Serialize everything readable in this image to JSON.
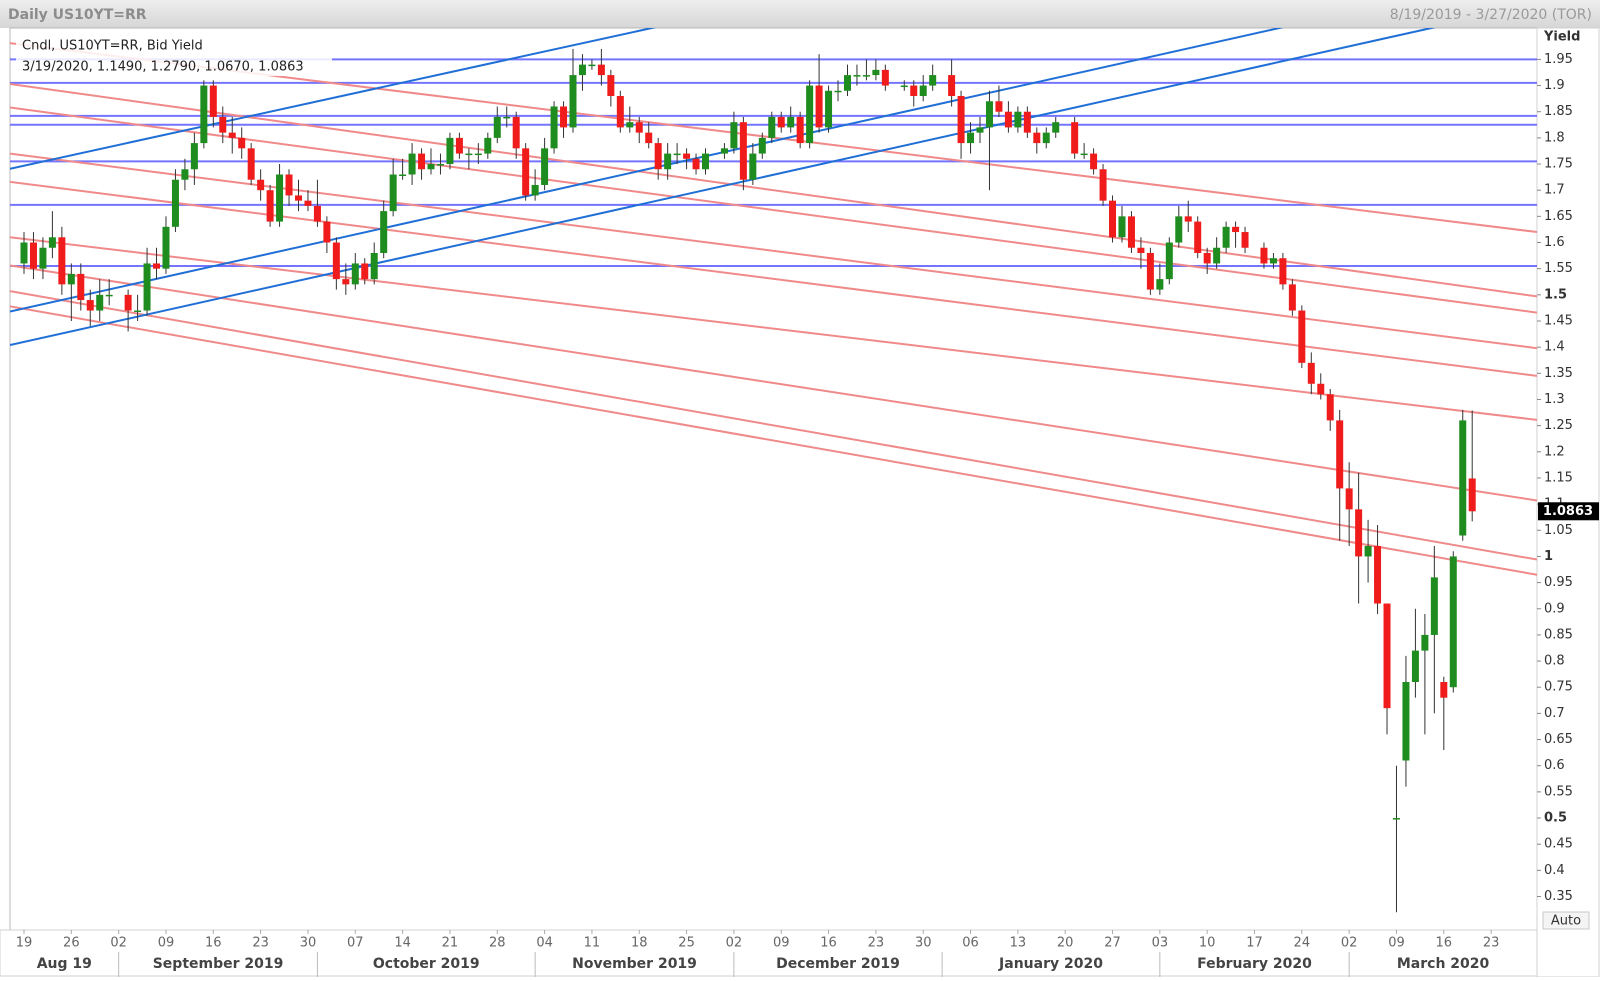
{
  "chart_data": {
    "type": "candlestick",
    "title": "Daily US10YT=RR",
    "range_label": "8/19/2019 - 3/27/2020 (TOR)",
    "legend_title": "Cndl, US10YT=RR, Bid Yield",
    "ohlc_label": "3/19/2020, 1.1490, 1.2790, 1.0670, 1.0863",
    "y_label": "Yield",
    "scale_mode": "Auto",
    "up_color": "#1e8c1e",
    "down_color": "#f01c1c",
    "grid": false,
    "xlim": [
      "8/19/2019",
      "3/27/2020"
    ],
    "ylim": [
      0.286,
      2.01
    ],
    "yticks": [
      0.35,
      0.4,
      0.45,
      0.5,
      0.55,
      0.6,
      0.65,
      0.7,
      0.75,
      0.8,
      0.85,
      0.9,
      0.95,
      1,
      1.05,
      1.1,
      1.15,
      1.2,
      1.25,
      1.3,
      1.35,
      1.4,
      1.45,
      1.5,
      1.55,
      1.6,
      1.65,
      1.7,
      1.75,
      1.8,
      1.85,
      1.9,
      1.95
    ],
    "xticks": [
      {
        "value": "8/19/2019",
        "label": "19"
      },
      {
        "value": "8/26/2019",
        "label": "26"
      },
      {
        "value": "9/2/2019",
        "label": "02"
      },
      {
        "value": "9/9/2019",
        "label": "09"
      },
      {
        "value": "9/16/2019",
        "label": "16"
      },
      {
        "value": "9/23/2019",
        "label": "23"
      },
      {
        "value": "9/30/2019",
        "label": "30"
      },
      {
        "value": "10/7/2019",
        "label": "07"
      },
      {
        "value": "10/14/2019",
        "label": "14"
      },
      {
        "value": "10/21/2019",
        "label": "21"
      },
      {
        "value": "10/28/2019",
        "label": "28"
      },
      {
        "value": "11/4/2019",
        "label": "04"
      },
      {
        "value": "11/11/2019",
        "label": "11"
      },
      {
        "value": "11/18/2019",
        "label": "18"
      },
      {
        "value": "11/25/2019",
        "label": "25"
      },
      {
        "value": "12/2/2019",
        "label": "02"
      },
      {
        "value": "12/9/2019",
        "label": "09"
      },
      {
        "value": "12/16/2019",
        "label": "16"
      },
      {
        "value": "12/23/2019",
        "label": "23"
      },
      {
        "value": "12/30/2019",
        "label": "30"
      },
      {
        "value": "1/6/2020",
        "label": "06"
      },
      {
        "value": "1/13/2020",
        "label": "13"
      },
      {
        "value": "1/20/2020",
        "label": "20"
      },
      {
        "value": "1/27/2020",
        "label": "27"
      },
      {
        "value": "2/3/2020",
        "label": "03"
      },
      {
        "value": "2/10/2020",
        "label": "10"
      },
      {
        "value": "2/17/2020",
        "label": "17"
      },
      {
        "value": "2/24/2020",
        "label": "24"
      },
      {
        "value": "3/2/2020",
        "label": "02"
      },
      {
        "value": "3/9/2020",
        "label": "09"
      },
      {
        "value": "3/16/2020",
        "label": "16"
      },
      {
        "value": "3/23/2020",
        "label": "23"
      }
    ],
    "months": [
      {
        "value": "8/1/2019",
        "label": "Aug 19"
      },
      {
        "value": "9/1/2019",
        "label": "September 2019"
      },
      {
        "value": "10/1/2019",
        "label": "October 2019"
      },
      {
        "value": "11/1/2019",
        "label": "November 2019"
      },
      {
        "value": "12/1/2019",
        "label": "December 2019"
      },
      {
        "value": "1/1/2020",
        "label": "January 2020"
      },
      {
        "value": "2/1/2020",
        "label": "February 2020"
      },
      {
        "value": "3/1/2020",
        "label": "March 2020"
      }
    ],
    "hline_color": "#7474ff",
    "hlines": [
      1.95,
      1.905,
      1.842,
      1.825,
      1.755,
      1.672,
      1.555
    ],
    "up_trend_color": "#1f6fd6",
    "up_trends": [
      {
        "left": 1.741,
        "right": 2.381
      },
      {
        "left": 1.468,
        "right": 2.12
      },
      {
        "left": 1.404,
        "right": 2.055
      }
    ],
    "down_trend_color": "#f08a8a",
    "down_trends": [
      {
        "left": 1.981,
        "right": 1.62
      },
      {
        "left": 1.903,
        "right": 1.497
      },
      {
        "left": 1.858,
        "right": 1.466
      },
      {
        "left": 1.77,
        "right": 1.398
      },
      {
        "left": 1.716,
        "right": 1.345
      },
      {
        "left": 1.61,
        "right": 1.261
      },
      {
        "left": 1.556,
        "right": 1.107
      },
      {
        "left": 1.507,
        "right": 0.994
      },
      {
        "left": 1.478,
        "right": 0.965
      }
    ],
    "candles": [
      [
        "8/19/2019",
        1.56,
        1.62,
        1.54,
        1.6
      ],
      [
        "8/20/2019",
        1.6,
        1.62,
        1.53,
        1.55
      ],
      [
        "8/21/2019",
        1.55,
        1.61,
        1.53,
        1.59
      ],
      [
        "8/22/2019",
        1.59,
        1.66,
        1.57,
        1.61
      ],
      [
        "8/23/2019",
        1.61,
        1.63,
        1.5,
        1.52
      ],
      [
        "8/26/2019",
        1.52,
        1.56,
        1.45,
        1.54
      ],
      [
        "8/27/2019",
        1.54,
        1.56,
        1.47,
        1.49
      ],
      [
        "8/28/2019",
        1.49,
        1.51,
        1.44,
        1.47
      ],
      [
        "8/29/2019",
        1.47,
        1.53,
        1.45,
        1.5
      ],
      [
        "8/30/2019",
        1.5,
        1.53,
        1.48,
        1.5
      ],
      [
        "9/3/2019",
        1.5,
        1.51,
        1.43,
        1.47
      ],
      [
        "9/4/2019",
        1.47,
        1.5,
        1.45,
        1.47
      ],
      [
        "9/5/2019",
        1.47,
        1.59,
        1.46,
        1.56
      ],
      [
        "9/6/2019",
        1.56,
        1.59,
        1.53,
        1.55
      ],
      [
        "9/9/2019",
        1.55,
        1.65,
        1.54,
        1.63
      ],
      [
        "9/10/2019",
        1.63,
        1.74,
        1.62,
        1.72
      ],
      [
        "9/11/2019",
        1.72,
        1.76,
        1.7,
        1.74
      ],
      [
        "9/12/2019",
        1.74,
        1.81,
        1.71,
        1.79
      ],
      [
        "9/13/2019",
        1.79,
        1.91,
        1.78,
        1.9
      ],
      [
        "9/16/2019",
        1.9,
        1.91,
        1.82,
        1.84
      ],
      [
        "9/17/2019",
        1.84,
        1.86,
        1.79,
        1.81
      ],
      [
        "9/18/2019",
        1.81,
        1.84,
        1.77,
        1.8
      ],
      [
        "9/19/2019",
        1.8,
        1.82,
        1.76,
        1.78
      ],
      [
        "9/20/2019",
        1.78,
        1.79,
        1.71,
        1.72
      ],
      [
        "9/23/2019",
        1.72,
        1.74,
        1.68,
        1.7
      ],
      [
        "9/24/2019",
        1.7,
        1.71,
        1.63,
        1.64
      ],
      [
        "9/25/2019",
        1.64,
        1.75,
        1.63,
        1.73
      ],
      [
        "9/26/2019",
        1.73,
        1.74,
        1.67,
        1.69
      ],
      [
        "9/27/2019",
        1.69,
        1.72,
        1.66,
        1.68
      ],
      [
        "9/30/2019",
        1.68,
        1.7,
        1.66,
        1.67
      ],
      [
        "10/1/2019",
        1.67,
        1.72,
        1.63,
        1.64
      ],
      [
        "10/2/2019",
        1.64,
        1.65,
        1.58,
        1.6
      ],
      [
        "10/3/2019",
        1.6,
        1.61,
        1.51,
        1.53
      ],
      [
        "10/4/2019",
        1.53,
        1.56,
        1.5,
        1.52
      ],
      [
        "10/7/2019",
        1.52,
        1.58,
        1.51,
        1.56
      ],
      [
        "10/8/2019",
        1.56,
        1.57,
        1.52,
        1.53
      ],
      [
        "10/9/2019",
        1.53,
        1.6,
        1.52,
        1.58
      ],
      [
        "10/10/2019",
        1.58,
        1.68,
        1.57,
        1.66
      ],
      [
        "10/11/2019",
        1.66,
        1.76,
        1.65,
        1.73
      ],
      [
        "10/14/2019",
        1.73,
        1.76,
        1.72,
        1.73
      ],
      [
        "10/15/2019",
        1.73,
        1.79,
        1.71,
        1.77
      ],
      [
        "10/16/2019",
        1.77,
        1.78,
        1.72,
        1.74
      ],
      [
        "10/17/2019",
        1.74,
        1.78,
        1.73,
        1.75
      ],
      [
        "10/18/2019",
        1.75,
        1.77,
        1.73,
        1.75
      ],
      [
        "10/21/2019",
        1.75,
        1.81,
        1.74,
        1.8
      ],
      [
        "10/22/2019",
        1.8,
        1.81,
        1.76,
        1.77
      ],
      [
        "10/23/2019",
        1.77,
        1.78,
        1.74,
        1.77
      ],
      [
        "10/24/2019",
        1.77,
        1.79,
        1.75,
        1.77
      ],
      [
        "10/25/2019",
        1.77,
        1.81,
        1.76,
        1.8
      ],
      [
        "10/28/2019",
        1.8,
        1.86,
        1.79,
        1.84
      ],
      [
        "10/29/2019",
        1.84,
        1.86,
        1.82,
        1.84
      ],
      [
        "10/30/2019",
        1.84,
        1.85,
        1.76,
        1.78
      ],
      [
        "10/31/2019",
        1.78,
        1.79,
        1.68,
        1.69
      ],
      [
        "11/1/2019",
        1.69,
        1.74,
        1.68,
        1.71
      ],
      [
        "11/4/2019",
        1.71,
        1.8,
        1.7,
        1.78
      ],
      [
        "11/5/2019",
        1.78,
        1.87,
        1.77,
        1.86
      ],
      [
        "11/6/2019",
        1.86,
        1.87,
        1.8,
        1.82
      ],
      [
        "11/7/2019",
        1.82,
        1.97,
        1.81,
        1.92
      ],
      [
        "11/8/2019",
        1.92,
        1.96,
        1.89,
        1.94
      ],
      [
        "11/11/2019",
        1.94,
        1.95,
        1.93,
        1.94
      ],
      [
        "11/12/2019",
        1.94,
        1.97,
        1.9,
        1.92
      ],
      [
        "11/13/2019",
        1.92,
        1.93,
        1.86,
        1.88
      ],
      [
        "11/14/2019",
        1.88,
        1.89,
        1.81,
        1.82
      ],
      [
        "11/15/2019",
        1.82,
        1.86,
        1.81,
        1.83
      ],
      [
        "11/18/2019",
        1.83,
        1.84,
        1.79,
        1.81
      ],
      [
        "11/19/2019",
        1.81,
        1.83,
        1.78,
        1.79
      ],
      [
        "11/20/2019",
        1.79,
        1.8,
        1.72,
        1.74
      ],
      [
        "11/21/2019",
        1.74,
        1.79,
        1.72,
        1.77
      ],
      [
        "11/22/2019",
        1.77,
        1.79,
        1.75,
        1.77
      ],
      [
        "11/25/2019",
        1.77,
        1.78,
        1.74,
        1.76
      ],
      [
        "11/26/2019",
        1.76,
        1.77,
        1.73,
        1.74
      ],
      [
        "11/27/2019",
        1.74,
        1.78,
        1.73,
        1.77
      ],
      [
        "11/29/2019",
        1.77,
        1.79,
        1.76,
        1.78
      ],
      [
        "12/2/2019",
        1.78,
        1.85,
        1.77,
        1.83
      ],
      [
        "12/3/2019",
        1.83,
        1.84,
        1.7,
        1.72
      ],
      [
        "12/4/2019",
        1.72,
        1.79,
        1.71,
        1.77
      ],
      [
        "12/5/2019",
        1.77,
        1.81,
        1.76,
        1.8
      ],
      [
        "12/6/2019",
        1.8,
        1.85,
        1.79,
        1.84
      ],
      [
        "12/9/2019",
        1.84,
        1.85,
        1.81,
        1.82
      ],
      [
        "12/10/2019",
        1.82,
        1.86,
        1.81,
        1.84
      ],
      [
        "12/11/2019",
        1.84,
        1.85,
        1.78,
        1.79
      ],
      [
        "12/12/2019",
        1.79,
        1.91,
        1.78,
        1.9
      ],
      [
        "12/13/2019",
        1.9,
        1.96,
        1.81,
        1.82
      ],
      [
        "12/16/2019",
        1.82,
        1.9,
        1.81,
        1.89
      ],
      [
        "12/17/2019",
        1.89,
        1.91,
        1.87,
        1.89
      ],
      [
        "12/18/2019",
        1.89,
        1.94,
        1.88,
        1.92
      ],
      [
        "12/19/2019",
        1.92,
        1.94,
        1.9,
        1.92
      ],
      [
        "12/20/2019",
        1.92,
        1.95,
        1.91,
        1.92
      ],
      [
        "12/23/2019",
        1.92,
        1.95,
        1.91,
        1.93
      ],
      [
        "12/24/2019",
        1.93,
        1.94,
        1.89,
        1.9
      ],
      [
        "12/26/2019",
        1.9,
        1.91,
        1.89,
        1.9
      ],
      [
        "12/27/2019",
        1.9,
        1.91,
        1.86,
        1.88
      ],
      [
        "12/30/2019",
        1.88,
        1.92,
        1.87,
        1.9
      ],
      [
        "12/31/2019",
        1.9,
        1.94,
        1.89,
        1.92
      ],
      [
        "1/2/2020",
        1.92,
        1.95,
        1.86,
        1.88
      ],
      [
        "1/3/2020",
        1.88,
        1.89,
        1.76,
        1.79
      ],
      [
        "1/6/2020",
        1.79,
        1.83,
        1.77,
        1.81
      ],
      [
        "1/7/2020",
        1.81,
        1.84,
        1.79,
        1.82
      ],
      [
        "1/8/2020",
        1.82,
        1.89,
        1.7,
        1.87
      ],
      [
        "1/9/2020",
        1.87,
        1.9,
        1.84,
        1.85
      ],
      [
        "1/10/2020",
        1.85,
        1.87,
        1.81,
        1.82
      ],
      [
        "1/13/2020",
        1.82,
        1.86,
        1.81,
        1.85
      ],
      [
        "1/14/2020",
        1.85,
        1.86,
        1.8,
        1.81
      ],
      [
        "1/15/2020",
        1.81,
        1.82,
        1.77,
        1.79
      ],
      [
        "1/16/2020",
        1.79,
        1.82,
        1.78,
        1.81
      ],
      [
        "1/17/2020",
        1.81,
        1.84,
        1.8,
        1.83
      ],
      [
        "1/21/2020",
        1.83,
        1.84,
        1.76,
        1.77
      ],
      [
        "1/22/2020",
        1.77,
        1.79,
        1.76,
        1.77
      ],
      [
        "1/23/2020",
        1.77,
        1.78,
        1.73,
        1.74
      ],
      [
        "1/24/2020",
        1.74,
        1.75,
        1.67,
        1.68
      ],
      [
        "1/27/2020",
        1.68,
        1.69,
        1.6,
        1.61
      ],
      [
        "1/28/2020",
        1.61,
        1.67,
        1.6,
        1.65
      ],
      [
        "1/29/2020",
        1.65,
        1.66,
        1.58,
        1.59
      ],
      [
        "1/30/2020",
        1.59,
        1.61,
        1.55,
        1.58
      ],
      [
        "1/31/2020",
        1.58,
        1.59,
        1.5,
        1.51
      ],
      [
        "2/3/2020",
        1.51,
        1.56,
        1.5,
        1.53
      ],
      [
        "2/4/2020",
        1.53,
        1.61,
        1.52,
        1.6
      ],
      [
        "2/5/2020",
        1.6,
        1.67,
        1.59,
        1.65
      ],
      [
        "2/6/2020",
        1.65,
        1.68,
        1.62,
        1.64
      ],
      [
        "2/7/2020",
        1.64,
        1.65,
        1.57,
        1.58
      ],
      [
        "2/10/2020",
        1.58,
        1.59,
        1.54,
        1.56
      ],
      [
        "2/11/2020",
        1.56,
        1.61,
        1.55,
        1.59
      ],
      [
        "2/12/2020",
        1.59,
        1.64,
        1.58,
        1.63
      ],
      [
        "2/13/2020",
        1.63,
        1.64,
        1.59,
        1.62
      ],
      [
        "2/14/2020",
        1.62,
        1.63,
        1.58,
        1.59
      ],
      [
        "2/18/2020",
        1.59,
        1.6,
        1.55,
        1.56
      ],
      [
        "2/19/2020",
        1.56,
        1.58,
        1.55,
        1.57
      ],
      [
        "2/20/2020",
        1.57,
        1.58,
        1.51,
        1.52
      ],
      [
        "2/21/2020",
        1.52,
        1.53,
        1.46,
        1.47
      ],
      [
        "2/24/2020",
        1.47,
        1.48,
        1.36,
        1.37
      ],
      [
        "2/25/2020",
        1.37,
        1.39,
        1.31,
        1.33
      ],
      [
        "2/26/2020",
        1.33,
        1.35,
        1.3,
        1.31
      ],
      [
        "2/27/2020",
        1.31,
        1.32,
        1.24,
        1.26
      ],
      [
        "2/28/2020",
        1.26,
        1.28,
        1.03,
        1.13
      ],
      [
        "3/2/2020",
        1.13,
        1.18,
        1.02,
        1.09
      ],
      [
        "3/3/2020",
        1.09,
        1.16,
        0.91,
        1.0
      ],
      [
        "3/4/2020",
        1.0,
        1.07,
        0.95,
        1.02
      ],
      [
        "3/5/2020",
        1.02,
        1.06,
        0.89,
        0.91
      ],
      [
        "3/6/2020",
        0.91,
        0.91,
        0.66,
        0.71
      ],
      [
        "3/9/2020",
        0.5,
        0.6,
        0.32,
        0.5
      ],
      [
        "3/10/2020",
        0.61,
        0.81,
        0.56,
        0.76
      ],
      [
        "3/11/2020",
        0.76,
        0.9,
        0.73,
        0.82
      ],
      [
        "3/12/2020",
        0.82,
        0.89,
        0.66,
        0.85
      ],
      [
        "3/13/2020",
        0.85,
        1.02,
        0.7,
        0.96
      ],
      [
        "3/16/2020",
        0.76,
        0.77,
        0.63,
        0.73
      ],
      [
        "3/17/2020",
        0.75,
        1.01,
        0.74,
        1.0
      ],
      [
        "3/18/2020",
        1.04,
        1.28,
        1.03,
        1.26
      ],
      [
        "3/19/2020",
        1.149,
        1.279,
        1.067,
        1.0863
      ]
    ]
  }
}
